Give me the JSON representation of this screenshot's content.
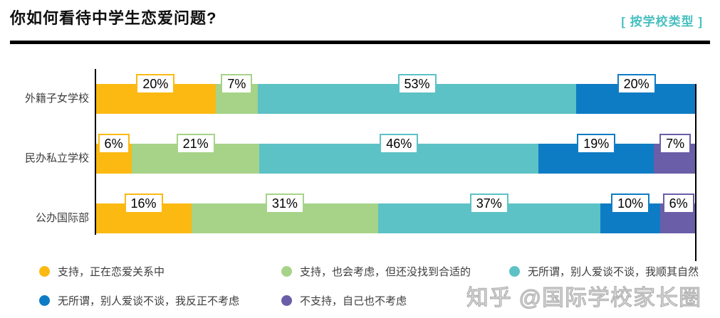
{
  "header": {
    "title": "你如何看待中学生恋爱问题?",
    "filter_label": "[ 按学校类型 ]"
  },
  "colors": {
    "yellow": "#FBB912",
    "green": "#A6D388",
    "teal": "#5CC2C6",
    "blue": "#0E7CC4",
    "purple": "#6A5EA8",
    "accent_teal": "#48BFC0"
  },
  "chart_data": {
    "type": "bar",
    "orientation": "horizontal",
    "stacked": true,
    "unit": "%",
    "title": "你如何看待中学生恋爱问题?",
    "subtitle": "[ 按学校类型 ]",
    "categories": [
      "外籍子女学校",
      "民办私立学校",
      "公办国际部"
    ],
    "series": [
      {
        "name": "支持，正在恋爱关系中",
        "color": "#FBB912",
        "values": [
          20,
          6,
          16
        ]
      },
      {
        "name": "支持，也会考虑，但还没找到合适的",
        "color": "#A6D388",
        "values": [
          7,
          21,
          31
        ]
      },
      {
        "name": "无所谓，别人爱谈不谈，我顺其自然",
        "color": "#5CC2C6",
        "values": [
          53,
          46,
          37
        ]
      },
      {
        "name": "无所谓，别人爱谈不谈，我反正不考虑",
        "color": "#0E7CC4",
        "values": [
          20,
          19,
          10
        ]
      },
      {
        "name": "不支持，自己也不考虑",
        "color": "#6A5EA8",
        "values": [
          0,
          7,
          6
        ]
      }
    ],
    "data_labels": "percent shown in white boxes with segment-colored border",
    "xlim": [
      0,
      100
    ],
    "grid": false,
    "legend_position": "bottom"
  },
  "legend": {
    "items": [
      {
        "label": "支持，正在恋爱关系中",
        "color": "#FBB912"
      },
      {
        "label": "支持，也会考虑，但还没找到合适的",
        "color": "#A6D388"
      },
      {
        "label": "无所谓，别人爱谈不谈，我顺其自然",
        "color": "#5CC2C6"
      },
      {
        "label": "无所谓，别人爱谈不谈，我反正不考虑",
        "color": "#0E7CC4"
      },
      {
        "label": "不支持，自己也不考虑",
        "color": "#6A5EA8"
      }
    ]
  },
  "watermark": {
    "text": "知乎 @国际学校家长圈"
  }
}
